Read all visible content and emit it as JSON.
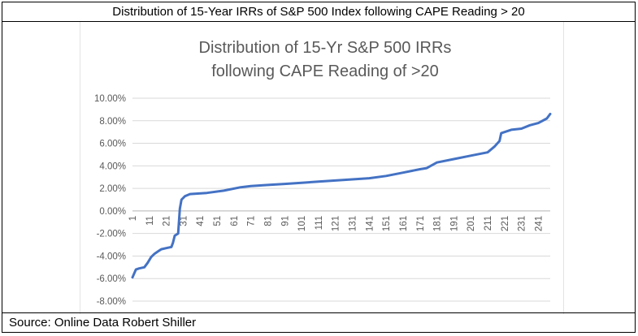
{
  "header": {
    "title": "Distribution of 15-Year IRRs of S&P 500 Index following CAPE Reading > 20"
  },
  "footer": {
    "source": "Source: Online Data Robert Shiller"
  },
  "chart_data": {
    "type": "line",
    "title_lines": [
      "Distribution of 15-Yr S&P 500 IRRs",
      "following CAPE Reading of >20"
    ],
    "xlabel": "",
    "ylabel": "",
    "ylim": [
      -0.08,
      0.1
    ],
    "ytick_values": [
      -0.08,
      -0.06,
      -0.04,
      -0.02,
      0.0,
      0.02,
      0.04,
      0.06,
      0.08,
      0.1
    ],
    "ytick_labels": [
      "-8.00%",
      "-6.00%",
      "-4.00%",
      "-2.00%",
      "0.00%",
      "2.00%",
      "4.00%",
      "6.00%",
      "8.00%",
      "10.00%"
    ],
    "xlim": [
      1,
      248
    ],
    "xtick_labels": [
      "1",
      "11",
      "21",
      "31",
      "41",
      "51",
      "61",
      "71",
      "81",
      "91",
      "101",
      "111",
      "121",
      "131",
      "141",
      "151",
      "161",
      "171",
      "181",
      "191",
      "201",
      "211",
      "221",
      "231",
      "241"
    ],
    "grid": true,
    "legend": "none",
    "line_color": "#4472c4",
    "series": [
      {
        "x": [
          1,
          3,
          5,
          8,
          10,
          12,
          14,
          16,
          18,
          21,
          24,
          25,
          26,
          28,
          29,
          30,
          32,
          35,
          45,
          55,
          65,
          71,
          81,
          91,
          101,
          111,
          121,
          131,
          141,
          151,
          161,
          171,
          175,
          181,
          191,
          201,
          211,
          215,
          218,
          219,
          221,
          225,
          231,
          236,
          241,
          246,
          248
        ],
        "y": [
          -0.059,
          -0.052,
          -0.051,
          -0.05,
          -0.046,
          -0.041,
          -0.038,
          -0.036,
          -0.034,
          -0.033,
          -0.032,
          -0.028,
          -0.022,
          -0.02,
          0.002,
          0.01,
          0.013,
          0.015,
          0.016,
          0.018,
          0.021,
          0.022,
          0.023,
          0.024,
          0.025,
          0.026,
          0.027,
          0.028,
          0.029,
          0.031,
          0.034,
          0.037,
          0.038,
          0.043,
          0.046,
          0.049,
          0.052,
          0.057,
          0.062,
          0.069,
          0.07,
          0.072,
          0.073,
          0.076,
          0.078,
          0.082,
          0.086
        ]
      }
    ]
  }
}
